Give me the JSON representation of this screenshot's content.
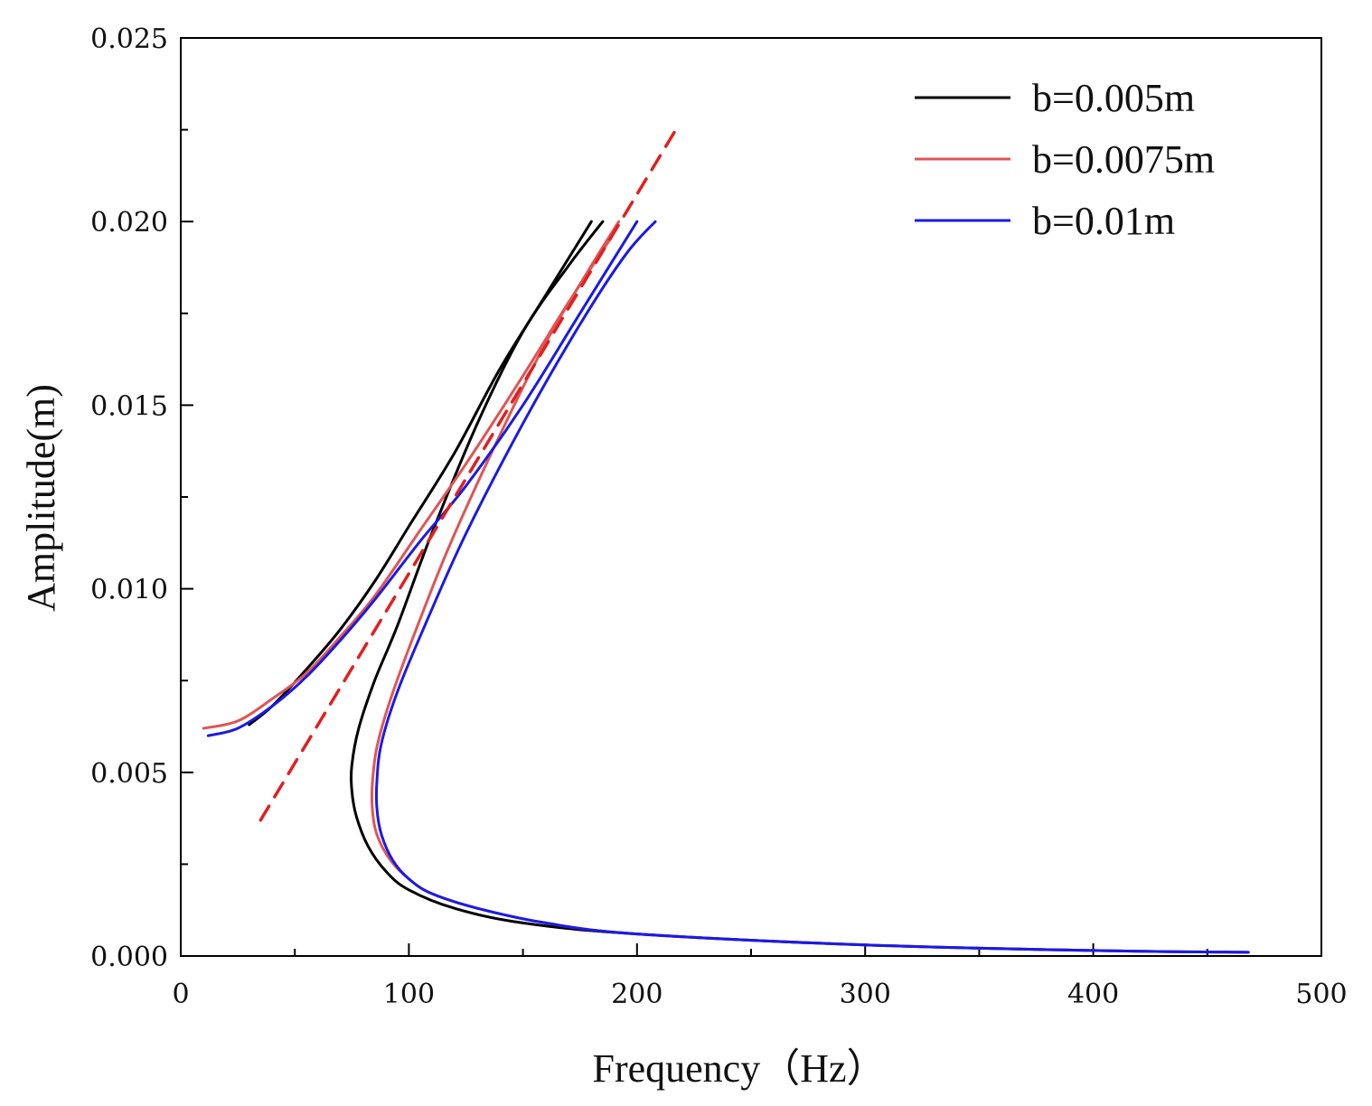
{
  "chart_data": {
    "type": "line",
    "title": "",
    "xlabel": "Frequency（Hz）",
    "ylabel": "Amplitude(m)",
    "xlim": [
      0,
      500
    ],
    "ylim": [
      0,
      0.025
    ],
    "grid": false,
    "legend_position": "top-right",
    "x_ticks": [
      0,
      100,
      200,
      300,
      400,
      500
    ],
    "x_tick_labels": [
      "0",
      "100",
      "200",
      "300",
      "400",
      "500"
    ],
    "y_ticks": [
      0,
      0.005,
      0.01,
      0.015,
      0.02,
      0.025
    ],
    "y_tick_labels": [
      "0.000",
      "0.005",
      "0.010",
      "0.015",
      "0.020",
      "0.025"
    ],
    "series": [
      {
        "name": "b=0.005m",
        "color": "#000000",
        "style": "solid",
        "in_legend": true,
        "branches": [
          {
            "x": [
              468,
              400,
              300,
              200,
              150,
              120,
              100,
              90,
              82,
              77,
              75,
              75,
              78,
              85,
              95,
              110,
              130,
              150,
              170,
              185
            ],
            "y": [
              0.0001,
              0.00015,
              0.0003,
              0.0006,
              0.0009,
              0.0013,
              0.0018,
              0.0023,
              0.003,
              0.0038,
              0.0045,
              0.0052,
              0.0062,
              0.0075,
              0.009,
              0.0115,
              0.0145,
              0.017,
              0.0188,
              0.02
            ]
          },
          {
            "x": [
              30,
              40,
              55,
              70,
              85,
              100,
              120,
              140,
              160,
              180
            ],
            "y": [
              0.0063,
              0.0068,
              0.0078,
              0.0089,
              0.0102,
              0.0117,
              0.0137,
              0.016,
              0.018,
              0.02
            ]
          }
        ]
      },
      {
        "name": "b=0.0075m",
        "color": "#e05555",
        "style": "solid",
        "in_legend": true,
        "branches": [
          {
            "x": [
              468,
              400,
              300,
              200,
              160,
              130,
              110,
              100,
              92,
              86,
              84,
              84,
              86,
              92,
              102,
              118,
              140,
              160,
              178,
              192
            ],
            "y": [
              0.0001,
              0.00015,
              0.0003,
              0.0006,
              0.0009,
              0.0013,
              0.0017,
              0.0021,
              0.0026,
              0.0033,
              0.004,
              0.0047,
              0.0057,
              0.007,
              0.0087,
              0.0112,
              0.0142,
              0.0167,
              0.0186,
              0.02
            ]
          },
          {
            "x": [
              10,
              25,
              40,
              55,
              70,
              85,
              105,
              125,
              150,
              170,
              188
            ],
            "y": [
              0.0062,
              0.0064,
              0.007,
              0.0077,
              0.0087,
              0.0098,
              0.0116,
              0.0134,
              0.0158,
              0.0178,
              0.0195
            ]
          }
        ]
      },
      {
        "name": "b=0.01m",
        "color": "#1a1ae6",
        "style": "solid",
        "in_legend": true,
        "branches": [
          {
            "x": [
              468,
              400,
              300,
              200,
              160,
              130,
              110,
              100,
              93,
              88,
              86,
              86,
              88,
              95,
              107,
              125,
              150,
              175,
              195,
              208
            ],
            "y": [
              0.0001,
              0.00015,
              0.0003,
              0.0006,
              0.0009,
              0.0013,
              0.0017,
              0.0021,
              0.0026,
              0.0033,
              0.004,
              0.0048,
              0.0058,
              0.0072,
              0.009,
              0.0115,
              0.0145,
              0.0172,
              0.0191,
              0.02
            ]
          },
          {
            "x": [
              12,
              25,
              40,
              55,
              70,
              85,
              105,
              125,
              150,
              175,
              200
            ],
            "y": [
              0.006,
              0.0062,
              0.0068,
              0.0076,
              0.0086,
              0.0097,
              0.0113,
              0.0128,
              0.015,
              0.0175,
              0.02
            ]
          }
        ]
      },
      {
        "name": "backbone",
        "color": "#e02020",
        "style": "dashed",
        "in_legend": false,
        "branches": [
          {
            "x": [
              35,
              218
            ],
            "y": [
              0.0037,
              0.0226
            ]
          }
        ]
      }
    ]
  }
}
